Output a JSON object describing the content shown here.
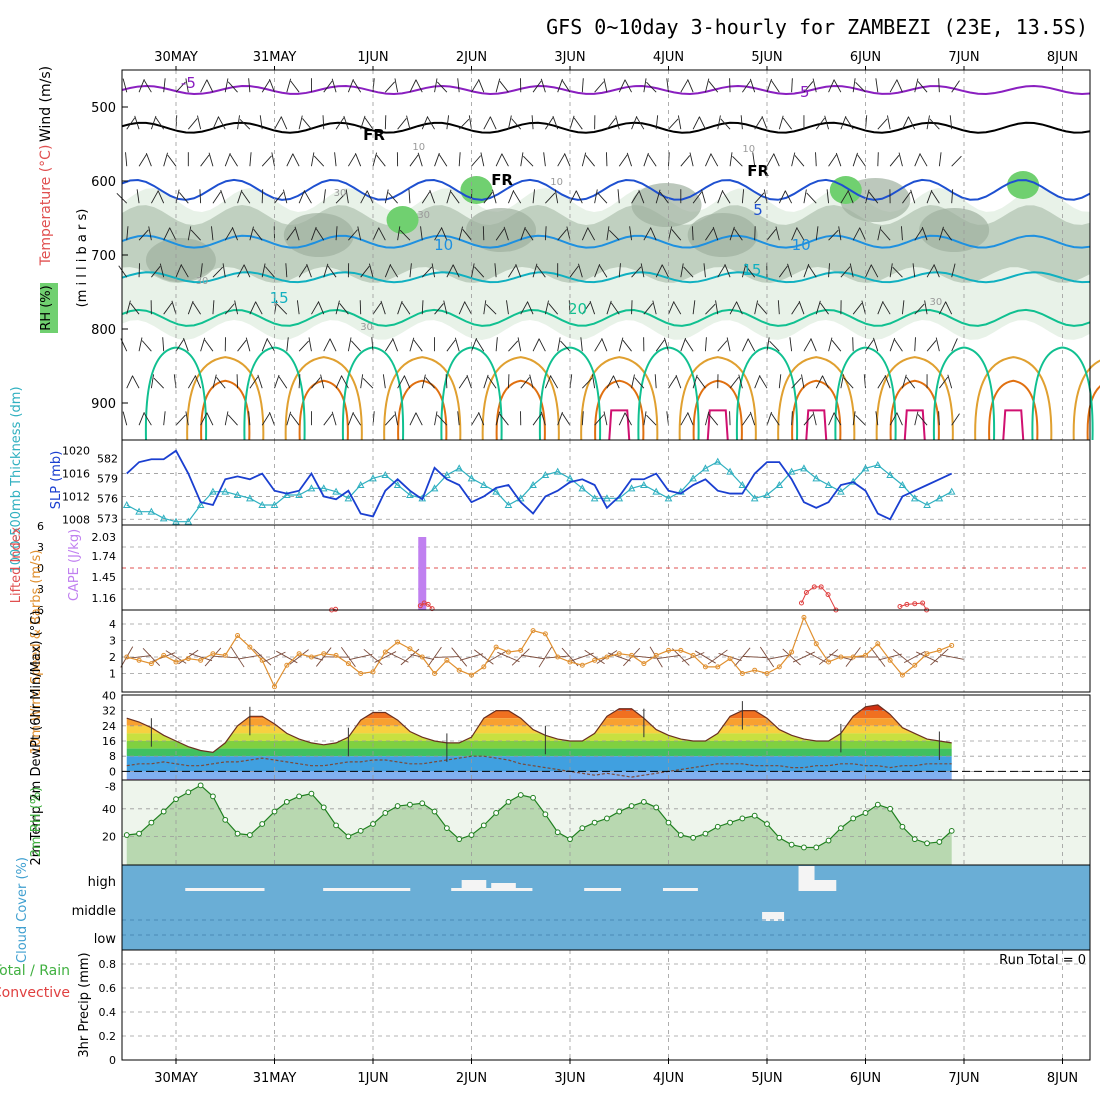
{
  "title": "GFS 0~10day 3-hourly for ZAMBEZI (23E, 13.5S)",
  "dates": [
    "30MAY",
    "31MAY",
    "1JUN",
    "2JUN",
    "3JUN",
    "4JUN",
    "5JUN",
    "6JUN",
    "7JUN",
    "8JUN"
  ],
  "colors": {
    "frame": "#000000",
    "grid": "#9a9a9a",
    "temp_purple": "#8a1fc0",
    "temp_black": "#000000",
    "temp_blue": "#1e50d0",
    "temp_lightblue": "#1e90e0",
    "temp_cyan": "#10b0c0",
    "temp_green": "#10c090",
    "temp_orange": "#e0a030",
    "temp_darkorange": "#e07010",
    "temp_magenta": "#d01070",
    "rh_light": "#e8f2e8",
    "rh_mid": "#c0d0c0",
    "rh_dark": "#a0b0a0",
    "rh_green": "#70d070",
    "slp": "#1a3fd0",
    "thickness": "#30b0c0",
    "cape": "#c080f0",
    "lifted": "#e04040",
    "wind": "#e09030",
    "cloud": "#6aaed6",
    "rh2m": "#40b040"
  },
  "upper_panel": {
    "ylabel_wind": "Wind (m/s)",
    "ylabel_temp": "Temperature (°C)",
    "ylabel_rh": "RH (%)",
    "ylabel_mb": "(m i l l i b a r s)",
    "yticks": [
      "500",
      "600",
      "700",
      "800",
      "900"
    ],
    "contour_labels": [
      "-5",
      "-5",
      "FR",
      "FR",
      "FR",
      "5",
      "10",
      "10",
      "15",
      "15",
      "20",
      "10",
      "10",
      "30",
      "30",
      "30",
      "30",
      "30",
      "10"
    ]
  },
  "chart_data": [
    {
      "id": "slp_thickness",
      "type": "line",
      "ylabel_left": "1000-500mb Thickness (dm)",
      "ylabel_right": "SLP (mb)",
      "left_ticks": [
        "582",
        "579",
        "576",
        "573"
      ],
      "right_ticks": [
        "1020",
        "1016",
        "1012",
        "1008"
      ],
      "series": [
        {
          "name": "SLP",
          "unit": "mb",
          "ylim": [
            1007,
            1021
          ],
          "values": [
            1016,
            1018,
            1018.5,
            1018.5,
            1020,
            1016,
            1011,
            1010.5,
            1015,
            1015.5,
            1015,
            1016,
            1013,
            1012.5,
            1013,
            1016,
            1012,
            1011.5,
            1013,
            1009,
            1008.5,
            1013,
            1015,
            1013,
            1011.5,
            1017,
            1015,
            1014,
            1011,
            1012,
            1013.5,
            1014,
            1011,
            1009,
            1012,
            1013,
            1014.5,
            1015,
            1014,
            1010,
            1012,
            1015,
            1015,
            1016,
            1013,
            1012.5,
            1014,
            1015,
            1013,
            1012.5,
            1012.5,
            1016,
            1018,
            1018,
            1015,
            1011,
            1010,
            1011,
            1014,
            1014.5,
            1013,
            1009,
            1008,
            1012,
            1013,
            1014,
            1015,
            1016
          ]
        },
        {
          "name": "Thickness",
          "unit": "dm",
          "ylim": [
            572,
            584
          ],
          "values": [
            575,
            574,
            574,
            573,
            572.5,
            572.5,
            575,
            577,
            577,
            576.5,
            576,
            575,
            575,
            576.5,
            576.5,
            577.5,
            577.5,
            577,
            576,
            578,
            579,
            579.5,
            578,
            576.5,
            576,
            577.5,
            579.5,
            580.5,
            579,
            578,
            577,
            575,
            576,
            578,
            579.5,
            580,
            579,
            577.5,
            576,
            576,
            576,
            577.5,
            578,
            577,
            576,
            577,
            579,
            580.5,
            581.5,
            580,
            578,
            576,
            576.5,
            578,
            580,
            580.5,
            579,
            578,
            577,
            578.5,
            580.5,
            581,
            579.5,
            578,
            576,
            575,
            576,
            577
          ]
        }
      ]
    },
    {
      "id": "cape_li",
      "type": "bar",
      "ylabel_left": "Lifted Index",
      "ylabel_right": "CAPE (J/kg)",
      "left_ticks": [
        "-6",
        "-3",
        "0",
        "3",
        "6"
      ],
      "right_ticks": [
        "2.03",
        "1.74",
        "1.45",
        "1.16"
      ],
      "cape_bar": {
        "day": 2.5,
        "value": 2.03
      },
      "lifted_segments": [
        {
          "x": [
            1.58,
            1.62
          ],
          "values": [
            6,
            5.9
          ]
        },
        {
          "x": [
            2.48,
            2.52,
            2.56,
            2.6
          ],
          "values": [
            5.4,
            5.0,
            5.2,
            5.8
          ]
        },
        {
          "x": [
            6.35,
            6.4,
            6.48,
            6.55,
            6.62,
            6.7
          ],
          "values": [
            5.0,
            3.5,
            2.7,
            2.7,
            3.8,
            6.0
          ]
        },
        {
          "x": [
            7.35,
            7.42,
            7.5,
            7.58,
            7.62
          ],
          "values": [
            5.5,
            5.2,
            5.1,
            5.0,
            6.0
          ]
        }
      ]
    },
    {
      "id": "wind10m",
      "type": "line",
      "ylabel": "10m Wind Speed & Barbs (m/s)",
      "yticks": [
        "4",
        "3",
        "2",
        "1"
      ],
      "ylim": [
        0,
        5
      ],
      "values": [
        2,
        1.8,
        1.6,
        2.1,
        1.7,
        1.9,
        1.8,
        2.2,
        2.1,
        3.3,
        2.6,
        1.8,
        0.2,
        1.5,
        2.2,
        2.0,
        2.2,
        2.1,
        1.6,
        1.0,
        1.1,
        2.3,
        2.9,
        2.5,
        2.0,
        1.0,
        1.8,
        1.2,
        0.9,
        1.4,
        2.6,
        2.3,
        2.4,
        3.6,
        3.4,
        2.0,
        1.7,
        1.5,
        1.8,
        2.0,
        2.2,
        2.1,
        1.6,
        2.1,
        2.4,
        2.4,
        2.1,
        1.4,
        1.4,
        1.9,
        1.0,
        1.2,
        1.0,
        1.4,
        2.3,
        4.4,
        2.8,
        1.7,
        2.0,
        2.0,
        2.1,
        2.8,
        1.8,
        0.9,
        1.5,
        2.2,
        2.4,
        2.7
      ]
    },
    {
      "id": "temp2m",
      "type": "area",
      "ylabel": "2m Temp 2m DewPt (6hr Min/Max) (°C)",
      "yticks": [
        "40",
        "32",
        "24",
        "16",
        "8",
        "0",
        "-8"
      ],
      "ylim": [
        -8,
        42
      ],
      "temp_values": [
        28,
        26,
        23,
        19,
        16,
        13,
        11,
        10,
        15,
        24,
        29,
        29,
        25,
        20,
        17,
        15,
        14,
        15,
        18,
        27,
        31,
        31,
        27,
        21,
        18,
        16,
        15,
        15,
        18,
        28,
        32,
        32,
        28,
        22,
        19,
        17,
        16,
        16,
        20,
        29,
        33,
        33,
        28,
        22,
        19,
        17,
        16,
        16,
        20,
        29,
        32,
        32,
        28,
        22,
        19,
        17,
        16,
        16,
        20,
        29,
        34,
        35,
        30,
        23,
        20,
        17,
        16,
        15
      ],
      "dewpt_values": [
        3,
        4,
        4,
        5,
        4,
        3,
        3,
        4,
        5,
        5,
        6,
        7,
        6,
        5,
        4,
        3,
        3,
        4,
        5,
        5,
        6,
        6,
        5,
        4,
        4,
        5,
        6,
        7,
        8,
        8,
        7,
        6,
        4,
        3,
        2,
        1,
        0,
        -1,
        -2,
        -1,
        -2,
        -3,
        -2,
        -1,
        0,
        1,
        2,
        3,
        4,
        4,
        4,
        3,
        3,
        3,
        2,
        2,
        3,
        3,
        4,
        4,
        3,
        3,
        2,
        3,
        3,
        4,
        4,
        4
      ]
    },
    {
      "id": "rh2m",
      "type": "area",
      "ylabel": "2m RH (%)",
      "yticks": [
        "40",
        "20"
      ],
      "ylim": [
        0,
        65
      ],
      "values": [
        21,
        22,
        30,
        38,
        47,
        52,
        57,
        49,
        32,
        22,
        21,
        29,
        38,
        45,
        49,
        51,
        41,
        28,
        20,
        24,
        29,
        37,
        42,
        43,
        44,
        38,
        26,
        18,
        21,
        28,
        37,
        45,
        50,
        48,
        36,
        23,
        18,
        26,
        30,
        33,
        38,
        42,
        45,
        41,
        30,
        21,
        19,
        22,
        27,
        30,
        33,
        35,
        29,
        19,
        14,
        12,
        12,
        17,
        26,
        33,
        37,
        43,
        40,
        27,
        18,
        15,
        16,
        24
      ]
    },
    {
      "id": "cloud",
      "type": "heatmap",
      "ylabel": "Cloud Cover (%)",
      "rows": [
        "high",
        "middle",
        "low"
      ]
    },
    {
      "id": "precip",
      "type": "bar",
      "ylabel_left": "Total / Rain",
      "ylabel_left2": "Convective",
      "ylabel_right": "3hr Precip (mm)",
      "yticks": [
        "0.8",
        "0.6",
        "0.4",
        "0.2",
        "0"
      ],
      "ylim": [
        0,
        0.9
      ],
      "values": [],
      "run_total_label": "Run Total = 0"
    }
  ]
}
